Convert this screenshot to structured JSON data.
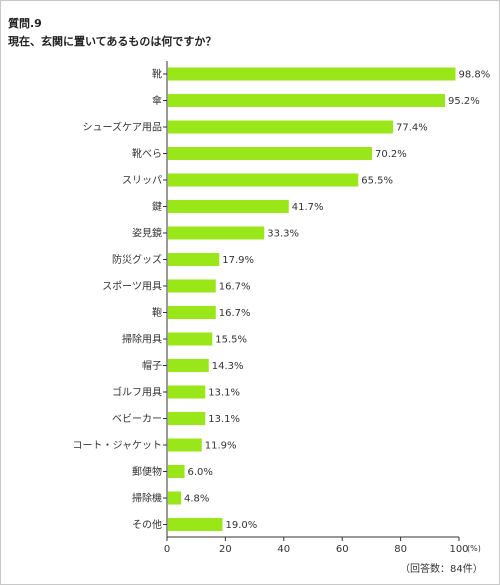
{
  "question": {
    "number": "質問.9",
    "text": "現在、玄関に置いてあるものは何ですか？"
  },
  "chart_data": {
    "type": "bar",
    "orientation": "horizontal",
    "categories": [
      "靴",
      "傘",
      "シューズケア用品",
      "靴べら",
      "スリッパ",
      "鍵",
      "姿見鏡",
      "防災グッズ",
      "スポーツ用具",
      "鞄",
      "掃除用具",
      "帽子",
      "ゴルフ用具",
      "ベビーカー",
      "コート・ジャケット",
      "郵便物",
      "掃除機",
      "その他"
    ],
    "values": [
      98.8,
      95.2,
      77.4,
      70.2,
      65.5,
      41.7,
      33.3,
      17.9,
      16.7,
      16.7,
      15.5,
      14.3,
      13.1,
      13.1,
      11.9,
      6.0,
      4.8,
      19.0
    ],
    "value_labels": [
      "98.8%",
      "95.2%",
      "77.4%",
      "70.2%",
      "65.5%",
      "41.7%",
      "33.3%",
      "17.9%",
      "16.7%",
      "16.7%",
      "15.5%",
      "14.3%",
      "13.1%",
      "13.1%",
      "11.9%",
      "6.0%",
      "4.8%",
      "19.0%"
    ],
    "xlim": [
      0,
      100
    ],
    "xticks": [
      0,
      20,
      40,
      60,
      80,
      100
    ],
    "xtick_labels": [
      "0",
      "20",
      "40",
      "60",
      "80",
      "100"
    ],
    "x_unit": "(%)",
    "bar_color": "#99e619",
    "grid": false
  },
  "footnote": "（回答数：84件）"
}
